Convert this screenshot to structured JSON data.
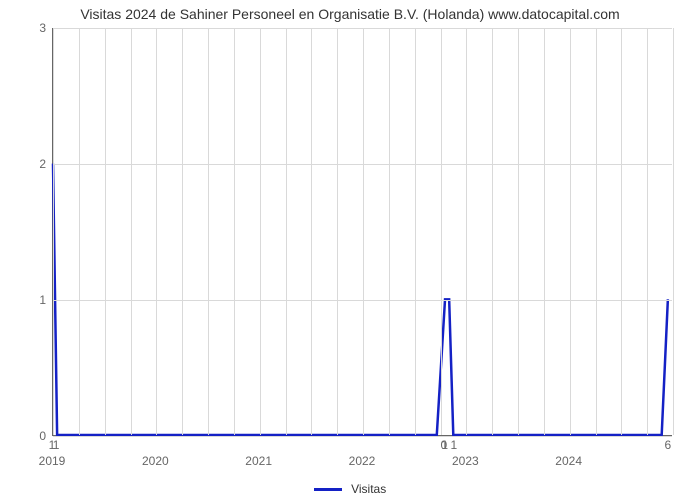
{
  "chart": {
    "type": "line",
    "title": "Visitas 2024 de Sahiner Personeel en Organisatie B.V. (Holanda) www.datocapital.com",
    "title_fontsize": 14,
    "title_color": "#333333",
    "background_color": "#ffffff",
    "grid_color": "#d9d9d9",
    "axis_color": "#666666",
    "tick_color": "#666666",
    "tick_fontsize": 12,
    "x": {
      "lim": [
        2019,
        2025
      ],
      "ticks": [
        2019,
        2020,
        2021,
        2022,
        2023,
        2024
      ],
      "minor_step": 0.25,
      "minor_grid": true
    },
    "y": {
      "lim": [
        0,
        3
      ],
      "ticks": [
        0,
        1,
        2,
        3
      ],
      "minor_grid": false
    },
    "series": [
      {
        "name": "Visitas",
        "color": "#1421c5",
        "line_width": 2.5,
        "x": [
          2019.0,
          2019.04,
          2019.08,
          2022.72,
          2022.8,
          2022.84,
          2022.88,
          2024.9,
          2024.96
        ],
        "y": [
          2.0,
          0.0,
          0.0,
          0.0,
          1.0,
          1.0,
          0.0,
          0.0,
          1.0
        ],
        "label": [
          "1",
          "1",
          "",
          "",
          "1",
          "0 1",
          "",
          "",
          "6"
        ]
      }
    ],
    "legend": {
      "label": "Visitas",
      "position": "bottom-center"
    }
  }
}
